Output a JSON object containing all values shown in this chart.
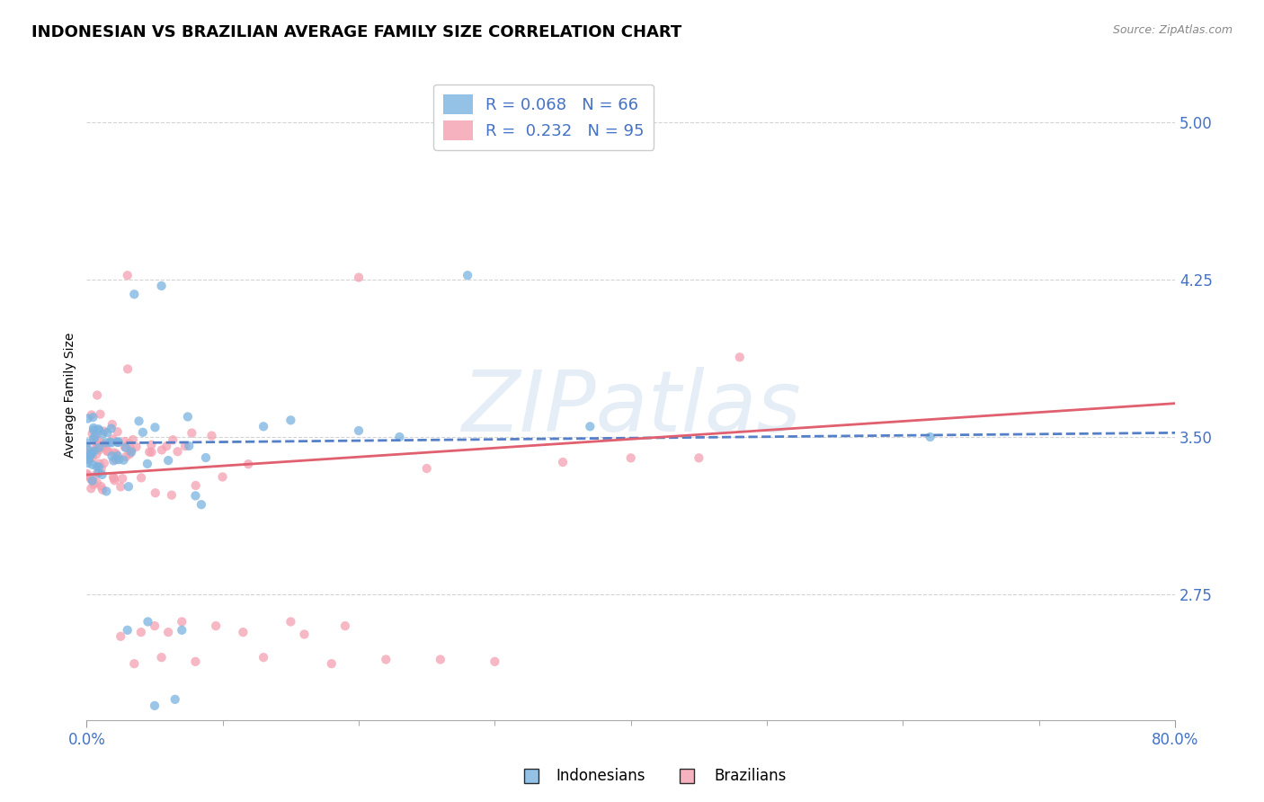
{
  "title": "INDONESIAN VS BRAZILIAN AVERAGE FAMILY SIZE CORRELATION CHART",
  "source_text": "Source: ZipAtlas.com",
  "ylabel": "Average Family Size",
  "yticks": [
    2.75,
    3.5,
    4.25,
    5.0
  ],
  "tick_color": "#4472c4",
  "indonesian_color": "#7ab3e0",
  "brazilian_color": "#f4a0b0",
  "indonesian_trend_color": "#5580c8",
  "brazilian_trend_color": "#e06070",
  "watermark": "ZIPatlas",
  "xmin": 0.0,
  "xmax": 80.0,
  "ymin": 2.15,
  "ymax": 5.25,
  "background_color": "#ffffff",
  "grid_color": "#c8c8c8",
  "title_fontsize": 13,
  "axis_label_fontsize": 10,
  "tick_fontsize": 12,
  "source_fontsize": 9,
  "legend_fontsize": 13,
  "indonesian_label": "R = 0.068   N = 66",
  "brazilian_label": "R =  0.232   N = 95",
  "bottom_label_indo": "Indonesians",
  "bottom_label_braz": "Brazilians",
  "trend_indo_x0": 0.0,
  "trend_indo_x1": 80.0,
  "trend_indo_y0": 3.47,
  "trend_indo_y1": 3.52,
  "trend_braz_x0": 0.0,
  "trend_braz_x1": 80.0,
  "trend_braz_y0": 3.32,
  "trend_braz_y1": 3.66
}
